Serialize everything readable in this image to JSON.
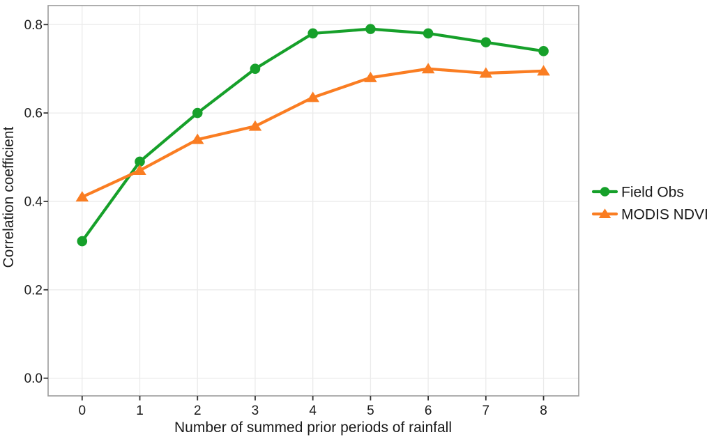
{
  "figure": {
    "background": "#ffffff"
  },
  "chart_data": {
    "type": "line",
    "title": "",
    "xlabel": "Number of summed prior periods of rainfall",
    "ylabel": "Correlation coefficient",
    "x": [
      0,
      1,
      2,
      3,
      4,
      5,
      6,
      7,
      8
    ],
    "x_tick_labels": [
      "0",
      "1",
      "2",
      "3",
      "4",
      "5",
      "6",
      "7",
      "8"
    ],
    "y_tick_values": [
      0.0,
      0.2,
      0.4,
      0.6,
      0.8
    ],
    "y_tick_labels": [
      "0.0",
      "0.2",
      "0.4",
      "0.6",
      "0.8"
    ],
    "xlim": [
      -0.59,
      8.61
    ],
    "ylim": [
      -0.04,
      0.843
    ],
    "grid": "major",
    "legend_position": "right",
    "series": [
      {
        "name": "Field Obs",
        "marker": "circle",
        "color": "#16a02a",
        "values": [
          0.31,
          0.49,
          0.6,
          0.7,
          0.78,
          0.79,
          0.78,
          0.76,
          0.74
        ]
      },
      {
        "name": "MODIS NDVI",
        "marker": "triangle",
        "color": "#fa7d22",
        "values": [
          0.41,
          0.47,
          0.54,
          0.57,
          0.635,
          0.68,
          0.7,
          0.69,
          0.695
        ]
      }
    ],
    "panel": {
      "background": "#ffffff",
      "border_color": "#9a9a9a",
      "grid_color": "#ebebeb",
      "tick_color": "#333333"
    }
  }
}
